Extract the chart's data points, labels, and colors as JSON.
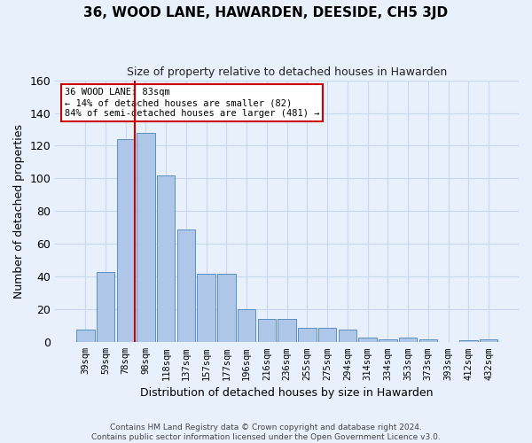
{
  "title": "36, WOOD LANE, HAWARDEN, DEESIDE, CH5 3JD",
  "subtitle": "Size of property relative to detached houses in Hawarden",
  "xlabel": "Distribution of detached houses by size in Hawarden",
  "ylabel": "Number of detached properties",
  "bar_labels": [
    "39sqm",
    "59sqm",
    "78sqm",
    "98sqm",
    "118sqm",
    "137sqm",
    "157sqm",
    "177sqm",
    "196sqm",
    "216sqm",
    "236sqm",
    "255sqm",
    "275sqm",
    "294sqm",
    "314sqm",
    "334sqm",
    "353sqm",
    "373sqm",
    "393sqm",
    "412sqm",
    "432sqm"
  ],
  "bar_values": [
    8,
    43,
    124,
    128,
    102,
    69,
    42,
    42,
    20,
    14,
    14,
    9,
    9,
    8,
    3,
    2,
    3,
    2,
    0,
    1,
    2
  ],
  "bar_color": "#aec6e8",
  "bar_edge_color": "#5a8fc2",
  "grid_color": "#c8d8f0",
  "background_color": "#e8f0fb",
  "annotation_line1": "36 WOOD LANE: 83sqm",
  "annotation_line2": "← 14% of detached houses are smaller (82)",
  "annotation_line3": "84% of semi-detached houses are larger (481) →",
  "annotation_box_color": "#ffffff",
  "annotation_box_edge_color": "#cc0000",
  "vline_color": "#cc0000",
  "ylim": [
    0,
    160
  ],
  "yticks": [
    0,
    20,
    40,
    60,
    80,
    100,
    120,
    140,
    160
  ],
  "footer_text": "Contains HM Land Registry data © Crown copyright and database right 2024.\nContains public sector information licensed under the Open Government Licence v3.0."
}
